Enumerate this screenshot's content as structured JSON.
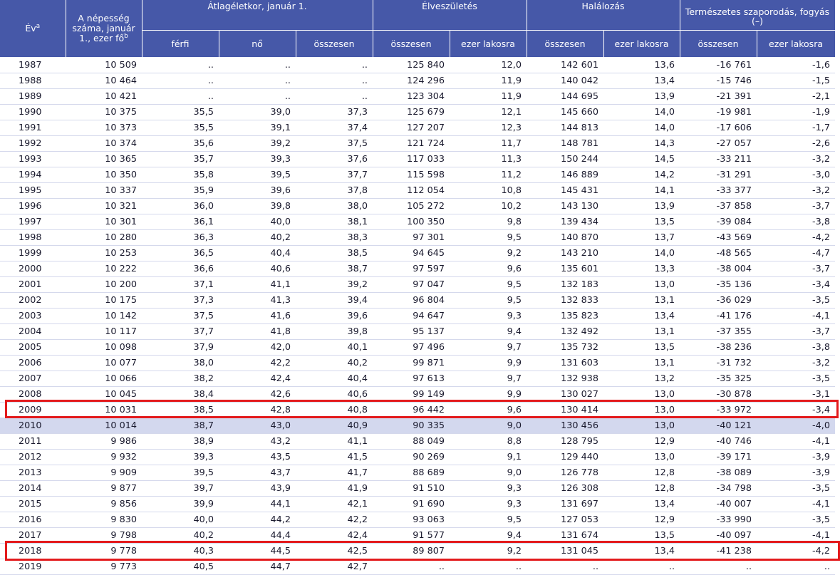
{
  "table": {
    "headers": {
      "year": "Év",
      "year_note": "a",
      "population": "A népesség száma, január 1., ezer fő",
      "population_note": "b",
      "life_expectancy": "Átlagéletkor, január 1.",
      "births": "Élveszületés",
      "deaths": "Halálozás",
      "natural_change": "Természetes szaporodás, fogyás (–)",
      "male": "férfi",
      "female": "nő",
      "total": "összesen",
      "per_thousand": "ezer lakosra"
    },
    "rows": [
      [
        "1987",
        "10 509",
        "..",
        "..",
        "..",
        "125 840",
        "12,0",
        "142 601",
        "13,6",
        "-16 761",
        "-1,6"
      ],
      [
        "1988",
        "10 464",
        "..",
        "..",
        "..",
        "124 296",
        "11,9",
        "140 042",
        "13,4",
        "-15 746",
        "-1,5"
      ],
      [
        "1989",
        "10 421",
        "..",
        "..",
        "..",
        "123 304",
        "11,9",
        "144 695",
        "13,9",
        "-21 391",
        "-2,1"
      ],
      [
        "1990",
        "10 375",
        "35,5",
        "39,0",
        "37,3",
        "125 679",
        "12,1",
        "145 660",
        "14,0",
        "-19 981",
        "-1,9"
      ],
      [
        "1991",
        "10 373",
        "35,5",
        "39,1",
        "37,4",
        "127 207",
        "12,3",
        "144 813",
        "14,0",
        "-17 606",
        "-1,7"
      ],
      [
        "1992",
        "10 374",
        "35,6",
        "39,2",
        "37,5",
        "121 724",
        "11,7",
        "148 781",
        "14,3",
        "-27 057",
        "-2,6"
      ],
      [
        "1993",
        "10 365",
        "35,7",
        "39,3",
        "37,6",
        "117 033",
        "11,3",
        "150 244",
        "14,5",
        "-33 211",
        "-3,2"
      ],
      [
        "1994",
        "10 350",
        "35,8",
        "39,5",
        "37,7",
        "115 598",
        "11,2",
        "146 889",
        "14,2",
        "-31 291",
        "-3,0"
      ],
      [
        "1995",
        "10 337",
        "35,9",
        "39,6",
        "37,8",
        "112 054",
        "10,8",
        "145 431",
        "14,1",
        "-33 377",
        "-3,2"
      ],
      [
        "1996",
        "10 321",
        "36,0",
        "39,8",
        "38,0",
        "105 272",
        "10,2",
        "143 130",
        "13,9",
        "-37 858",
        "-3,7"
      ],
      [
        "1997",
        "10 301",
        "36,1",
        "40,0",
        "38,1",
        "100 350",
        "9,8",
        "139 434",
        "13,5",
        "-39 084",
        "-3,8"
      ],
      [
        "1998",
        "10 280",
        "36,3",
        "40,2",
        "38,3",
        "97 301",
        "9,5",
        "140 870",
        "13,7",
        "-43 569",
        "-4,2"
      ],
      [
        "1999",
        "10 253",
        "36,5",
        "40,4",
        "38,5",
        "94 645",
        "9,2",
        "143 210",
        "14,0",
        "-48 565",
        "-4,7"
      ],
      [
        "2000",
        "10 222",
        "36,6",
        "40,6",
        "38,7",
        "97 597",
        "9,6",
        "135 601",
        "13,3",
        "-38 004",
        "-3,7"
      ],
      [
        "2001",
        "10 200",
        "37,1",
        "41,1",
        "39,2",
        "97 047",
        "9,5",
        "132 183",
        "13,0",
        "-35 136",
        "-3,4"
      ],
      [
        "2002",
        "10 175",
        "37,3",
        "41,3",
        "39,4",
        "96 804",
        "9,5",
        "132 833",
        "13,1",
        "-36 029",
        "-3,5"
      ],
      [
        "2003",
        "10 142",
        "37,5",
        "41,6",
        "39,6",
        "94 647",
        "9,3",
        "135 823",
        "13,4",
        "-41 176",
        "-4,1"
      ],
      [
        "2004",
        "10 117",
        "37,7",
        "41,8",
        "39,8",
        "95 137",
        "9,4",
        "132 492",
        "13,1",
        "-37 355",
        "-3,7"
      ],
      [
        "2005",
        "10 098",
        "37,9",
        "42,0",
        "40,1",
        "97 496",
        "9,7",
        "135 732",
        "13,5",
        "-38 236",
        "-3,8"
      ],
      [
        "2006",
        "10 077",
        "38,0",
        "42,2",
        "40,2",
        "99 871",
        "9,9",
        "131 603",
        "13,1",
        "-31 732",
        "-3,2"
      ],
      [
        "2007",
        "10 066",
        "38,2",
        "42,4",
        "40,4",
        "97 613",
        "9,7",
        "132 938",
        "13,2",
        "-35 325",
        "-3,5"
      ],
      [
        "2008",
        "10 045",
        "38,4",
        "42,6",
        "40,6",
        "99 149",
        "9,9",
        "130 027",
        "13,0",
        "-30 878",
        "-3,1"
      ],
      [
        "2009",
        "10 031",
        "38,5",
        "42,8",
        "40,8",
        "96 442",
        "9,6",
        "130 414",
        "13,0",
        "-33 972",
        "-3,4"
      ],
      [
        "2010",
        "10 014",
        "38,7",
        "43,0",
        "40,9",
        "90 335",
        "9,0",
        "130 456",
        "13,0",
        "-40 121",
        "-4,0"
      ],
      [
        "2011",
        "9 986",
        "38,9",
        "43,2",
        "41,1",
        "88 049",
        "8,8",
        "128 795",
        "12,9",
        "-40 746",
        "-4,1"
      ],
      [
        "2012",
        "9 932",
        "39,3",
        "43,5",
        "41,5",
        "90 269",
        "9,1",
        "129 440",
        "13,0",
        "-39 171",
        "-3,9"
      ],
      [
        "2013",
        "9 909",
        "39,5",
        "43,7",
        "41,7",
        "88 689",
        "9,0",
        "126 778",
        "12,8",
        "-38 089",
        "-3,9"
      ],
      [
        "2014",
        "9 877",
        "39,7",
        "43,9",
        "41,9",
        "91 510",
        "9,3",
        "126 308",
        "12,8",
        "-34 798",
        "-3,5"
      ],
      [
        "2015",
        "9 856",
        "39,9",
        "44,1",
        "42,1",
        "91 690",
        "9,3",
        "131 697",
        "13,4",
        "-40 007",
        "-4,1"
      ],
      [
        "2016",
        "9 830",
        "40,0",
        "44,2",
        "42,2",
        "93 063",
        "9,5",
        "127 053",
        "12,9",
        "-33 990",
        "-3,5"
      ],
      [
        "2017",
        "9 798",
        "40,2",
        "44,4",
        "42,4",
        "91 577",
        "9,4",
        "131 674",
        "13,5",
        "-40 097",
        "-4,1"
      ],
      [
        "2018",
        "9 778",
        "40,3",
        "44,5",
        "42,5",
        "89 807",
        "9,2",
        "131 045",
        "13,4",
        "-41 238",
        "-4,2"
      ],
      [
        "2019",
        "9 773",
        "40,5",
        "44,7",
        "42,7",
        "..",
        "..",
        "..",
        "..",
        "..",
        ".."
      ]
    ],
    "highlighted_row": "2010",
    "boxed_rows": [
      "2009",
      "2018"
    ],
    "colors": {
      "header_bg": "#4658a8",
      "highlight_bg": "#d3d8ee",
      "box": "#e31a1c"
    }
  }
}
